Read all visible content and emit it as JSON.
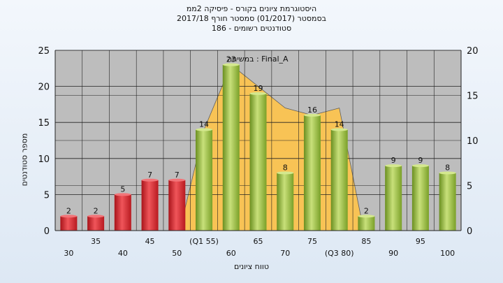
{
  "chart_data": {
    "type": "bar",
    "title_lines": [
      "היסטוגרמת ציונים בקורס - פיסיקה 2ממ",
      "בסמסטר  (01/2017)  סמסטר חורף 2017/18",
      "סטודנטים רשומים - 186"
    ],
    "legend": "במשיחה : Final_A",
    "xlabel": "טווח ציונים",
    "ylabel": "מספר סטודנטים",
    "categories": [
      "30",
      "35",
      "40",
      "45",
      "50",
      "(Q1 55)",
      "60",
      "65",
      "70",
      "75",
      "(Q3 80)",
      "85",
      "90",
      "95",
      "100"
    ],
    "values": [
      2,
      2,
      5,
      7,
      7,
      14,
      23,
      19,
      8,
      16,
      14,
      2,
      9,
      9,
      8
    ],
    "value_labels": [
      "2",
      "2",
      "5",
      "7",
      "7",
      "14",
      "23",
      "19",
      "8",
      "16",
      "14",
      "2",
      "9",
      "9",
      "8"
    ],
    "bar_colors": [
      "red",
      "red",
      "red",
      "red",
      "red",
      "green",
      "green",
      "green",
      "green",
      "green",
      "green",
      "green",
      "green",
      "green",
      "green"
    ],
    "area_values": [
      14,
      23,
      20,
      17,
      16,
      17
    ],
    "area_start_index": 5,
    "ylim": [
      0,
      25
    ],
    "yticks": [
      "0",
      "5",
      "10",
      "15",
      "20",
      "25"
    ],
    "y2lim": [
      0,
      20
    ],
    "y2ticks": [
      "0",
      "5",
      "10",
      "15",
      "20"
    ],
    "grid": true,
    "colors": {
      "red_bar": "#d9272b",
      "green_bar": "#8fb837",
      "area": "#ffc44a",
      "plot_bg": "#bdbdbd"
    }
  }
}
